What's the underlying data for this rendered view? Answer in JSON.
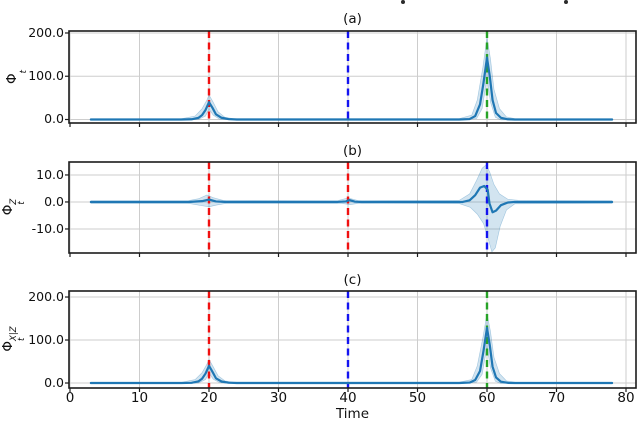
{
  "figure": {
    "xlabel": "Time",
    "x_ticks": [
      0,
      10,
      20,
      30,
      40,
      50,
      60,
      70,
      80
    ],
    "x_tick_labels": [
      "0",
      "10",
      "20",
      "30",
      "40",
      "50",
      "60",
      "70",
      "80"
    ],
    "colors": {
      "line": "#1f77b4",
      "band_fill": "rgba(31,119,180,0.20)",
      "band_edge": "rgba(31,119,180,0.35)",
      "grid": "#cdcdcd",
      "spine": "#1c1c1c",
      "red": "#f01010",
      "blue": "#1414f0",
      "green": "#27a327"
    },
    "cropped_text_remnants": [
      "descender-dot",
      "descender-dot"
    ]
  },
  "chart_data": [
    {
      "id": "a",
      "type": "line",
      "title": "(a)",
      "ylabel": {
        "base": "Φ",
        "sub": "t",
        "sup": ""
      },
      "ylim": [
        -8.1,
        204.6
      ],
      "y_ticks": [
        {
          "v": 0,
          "label": "0.0"
        },
        {
          "v": 100,
          "label": "100.0"
        },
        {
          "v": 200,
          "label": "200.0"
        }
      ],
      "vlines": [
        {
          "x": 20,
          "color_key": "red"
        },
        {
          "x": 40,
          "color_key": "blue"
        },
        {
          "x": 60,
          "color_key": "green"
        }
      ],
      "line": [
        [
          3,
          0
        ],
        [
          16,
          0
        ],
        [
          17.5,
          0.5
        ],
        [
          18.5,
          4
        ],
        [
          19,
          10
        ],
        [
          19.5,
          22
        ],
        [
          20,
          40
        ],
        [
          20.5,
          27
        ],
        [
          21,
          12
        ],
        [
          21.8,
          4
        ],
        [
          22.8,
          1
        ],
        [
          24,
          0
        ],
        [
          56,
          0
        ],
        [
          57.5,
          1
        ],
        [
          58.3,
          8
        ],
        [
          59,
          35
        ],
        [
          59.5,
          85
        ],
        [
          60,
          143
        ],
        [
          60.4,
          100
        ],
        [
          60.8,
          45
        ],
        [
          61.3,
          15
        ],
        [
          62,
          4
        ],
        [
          63,
          0.5
        ],
        [
          64,
          0
        ],
        [
          78,
          0
        ]
      ],
      "band_upper": [
        [
          3,
          1.5
        ],
        [
          16,
          1.5
        ],
        [
          18,
          8
        ],
        [
          19,
          25
        ],
        [
          19.7,
          45
        ],
        [
          20,
          57
        ],
        [
          20.6,
          40
        ],
        [
          21.3,
          18
        ],
        [
          22.3,
          5
        ],
        [
          23.5,
          2
        ],
        [
          56,
          2
        ],
        [
          57.8,
          10
        ],
        [
          58.6,
          45
        ],
        [
          59.4,
          120
        ],
        [
          60,
          190
        ],
        [
          60.5,
          140
        ],
        [
          61,
          70
        ],
        [
          61.8,
          25
        ],
        [
          62.8,
          6
        ],
        [
          64,
          2
        ],
        [
          78,
          1.5
        ]
      ],
      "band_lower": [
        [
          3,
          -1.5
        ],
        [
          16,
          -1.5
        ],
        [
          18.5,
          0
        ],
        [
          19.5,
          8
        ],
        [
          20,
          24
        ],
        [
          20.6,
          10
        ],
        [
          21.5,
          1
        ],
        [
          23,
          -1
        ],
        [
          56,
          -1.5
        ],
        [
          58.5,
          2
        ],
        [
          59.3,
          25
        ],
        [
          60,
          95
        ],
        [
          60.5,
          40
        ],
        [
          61.2,
          5
        ],
        [
          62,
          -1
        ],
        [
          78,
          -1.5
        ]
      ]
    },
    {
      "id": "b",
      "type": "line",
      "title": "(b)",
      "ylabel": {
        "base": "Φ",
        "sub": "t",
        "sup": "Z"
      },
      "ylim": [
        -18.9,
        14.8
      ],
      "y_ticks": [
        {
          "v": -10,
          "label": "-10.0"
        },
        {
          "v": 0,
          "label": "0.0"
        },
        {
          "v": 10,
          "label": "10.0"
        }
      ],
      "vlines": [
        {
          "x": 20,
          "color_key": "red"
        },
        {
          "x": 40,
          "color_key": "red"
        },
        {
          "x": 60,
          "color_key": "blue"
        }
      ],
      "line": [
        [
          3,
          0
        ],
        [
          17,
          0
        ],
        [
          19,
          0.3
        ],
        [
          20,
          0.9
        ],
        [
          21,
          0.2
        ],
        [
          22.5,
          0
        ],
        [
          38.5,
          0
        ],
        [
          39.7,
          0.2
        ],
        [
          40.2,
          0.7
        ],
        [
          41,
          0.1
        ],
        [
          42,
          0
        ],
        [
          56.5,
          0
        ],
        [
          57.5,
          0.6
        ],
        [
          58.3,
          2.5
        ],
        [
          59,
          5.3
        ],
        [
          59.6,
          5.9
        ],
        [
          60.1,
          4.5
        ],
        [
          60.35,
          -0.5
        ],
        [
          60.8,
          -3.8
        ],
        [
          61.3,
          -3.2
        ],
        [
          62,
          -1.2
        ],
        [
          63,
          -0.2
        ],
        [
          64,
          0
        ],
        [
          78,
          0
        ]
      ],
      "band_upper": [
        [
          3,
          0.5
        ],
        [
          17,
          0.5
        ],
        [
          18.5,
          1.2
        ],
        [
          19.7,
          2.6
        ],
        [
          20.6,
          1.6
        ],
        [
          22,
          0.6
        ],
        [
          38.5,
          0.5
        ],
        [
          40,
          1.5
        ],
        [
          41.5,
          0.5
        ],
        [
          56,
          0.6
        ],
        [
          57.5,
          3
        ],
        [
          58.5,
          8
        ],
        [
          59.3,
          12.5
        ],
        [
          59.9,
          13.8
        ],
        [
          60.4,
          11
        ],
        [
          61,
          6.5
        ],
        [
          61.8,
          3
        ],
        [
          63,
          1
        ],
        [
          64.5,
          0.6
        ],
        [
          78,
          0.5
        ]
      ],
      "band_lower": [
        [
          3,
          -0.5
        ],
        [
          17,
          -0.5
        ],
        [
          19,
          -1.4
        ],
        [
          20,
          -1.8
        ],
        [
          21,
          -1.2
        ],
        [
          22.5,
          -0.5
        ],
        [
          39,
          -0.5
        ],
        [
          40.3,
          -1
        ],
        [
          41.5,
          -0.5
        ],
        [
          56,
          -0.6
        ],
        [
          57.6,
          -2
        ],
        [
          58.6,
          -4.5
        ],
        [
          59.5,
          -8
        ],
        [
          60.1,
          -13
        ],
        [
          60.7,
          -18.5
        ],
        [
          61.2,
          -17
        ],
        [
          61.9,
          -9
        ],
        [
          62.8,
          -3
        ],
        [
          64,
          -0.7
        ],
        [
          78,
          -0.5
        ]
      ]
    },
    {
      "id": "c",
      "type": "line",
      "title": "(c)",
      "ylabel": {
        "base": "Φ",
        "sub": "t",
        "sup": "X|Z"
      },
      "ylim": [
        -11.6,
        214
      ],
      "y_ticks": [
        {
          "v": 0,
          "label": "0.0"
        },
        {
          "v": 100,
          "label": "100.0"
        },
        {
          "v": 200,
          "label": "200.0"
        }
      ],
      "vlines": [
        {
          "x": 20,
          "color_key": "red"
        },
        {
          "x": 40,
          "color_key": "blue"
        },
        {
          "x": 60,
          "color_key": "green"
        }
      ],
      "line": [
        [
          3,
          0
        ],
        [
          16,
          0
        ],
        [
          17.5,
          0.5
        ],
        [
          18.5,
          4
        ],
        [
          19,
          10
        ],
        [
          19.5,
          22
        ],
        [
          20,
          40
        ],
        [
          20.5,
          26
        ],
        [
          21,
          11
        ],
        [
          21.8,
          3.5
        ],
        [
          22.8,
          0.8
        ],
        [
          24,
          0
        ],
        [
          56,
          0
        ],
        [
          57.5,
          1
        ],
        [
          58.3,
          7
        ],
        [
          59,
          28
        ],
        [
          59.5,
          75
        ],
        [
          60,
          128
        ],
        [
          60.4,
          88
        ],
        [
          60.8,
          38
        ],
        [
          61.3,
          13
        ],
        [
          62,
          3
        ],
        [
          63,
          0.4
        ],
        [
          64,
          0
        ],
        [
          78,
          0
        ]
      ],
      "band_upper": [
        [
          3,
          1.5
        ],
        [
          16,
          1.5
        ],
        [
          18,
          8
        ],
        [
          19,
          24
        ],
        [
          19.7,
          44
        ],
        [
          20,
          55
        ],
        [
          20.6,
          38
        ],
        [
          21.3,
          17
        ],
        [
          22.3,
          5
        ],
        [
          23.5,
          2
        ],
        [
          56,
          2
        ],
        [
          57.8,
          8
        ],
        [
          58.6,
          40
        ],
        [
          59.4,
          105
        ],
        [
          60,
          162
        ],
        [
          60.5,
          120
        ],
        [
          61,
          60
        ],
        [
          61.8,
          22
        ],
        [
          62.8,
          5
        ],
        [
          64,
          2
        ],
        [
          78,
          1.5
        ]
      ],
      "band_lower": [
        [
          3,
          -1.5
        ],
        [
          16,
          -1.5
        ],
        [
          18.5,
          0
        ],
        [
          19.5,
          8
        ],
        [
          20,
          23
        ],
        [
          20.6,
          9
        ],
        [
          21.5,
          1
        ],
        [
          23,
          -1
        ],
        [
          56,
          -1.5
        ],
        [
          58.5,
          2
        ],
        [
          59.3,
          20
        ],
        [
          60,
          85
        ],
        [
          60.5,
          35
        ],
        [
          61.2,
          4
        ],
        [
          62,
          -1
        ],
        [
          78,
          -1.5
        ]
      ]
    }
  ]
}
